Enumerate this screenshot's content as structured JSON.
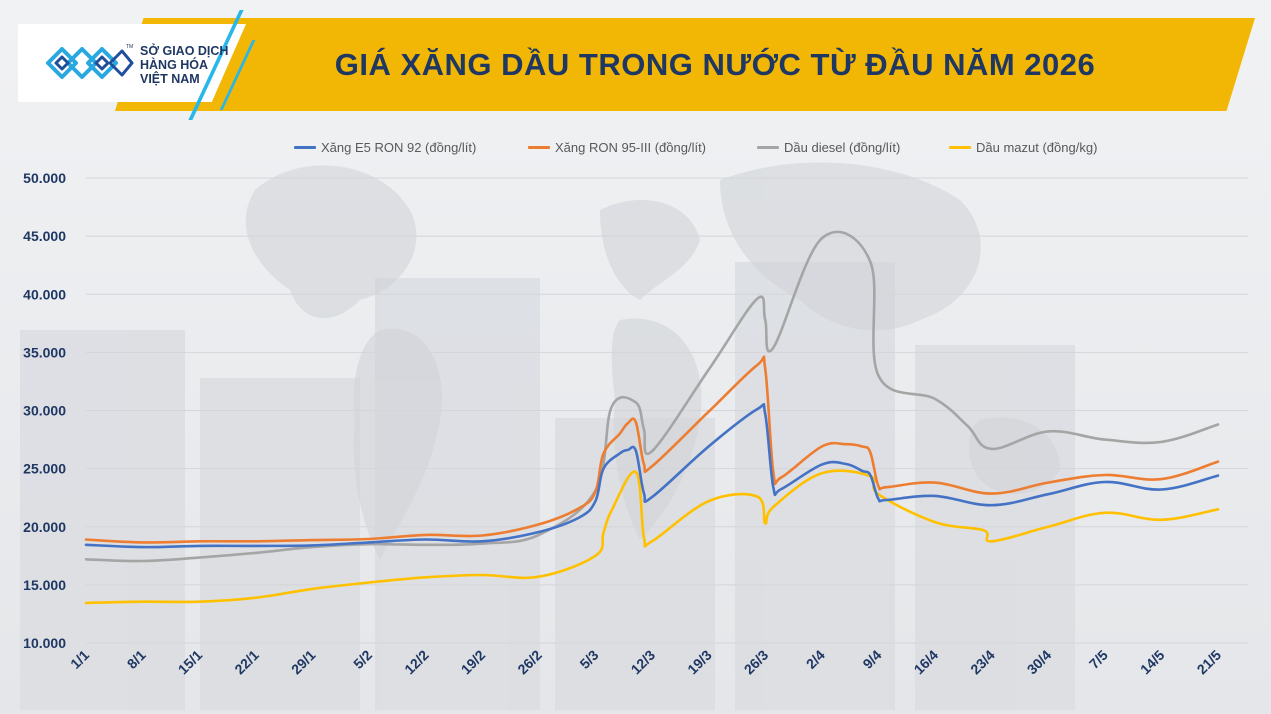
{
  "header": {
    "title": "GIÁ XĂNG DẦU TRONG NƯỚC TỪ ĐẦU NĂM 2026",
    "logo_line1": "SỞ GIAO DỊCH",
    "logo_line2": "HÀNG HÓA",
    "logo_line3": "VIỆT NAM",
    "logo_tm": "TM",
    "banner_color": "#F2B705",
    "title_color": "#1F3763"
  },
  "chart_data": {
    "type": "line",
    "title": "GIÁ XĂNG DẦU TRONG NƯỚC TỪ ĐẦU NĂM 2026",
    "xlabel": "",
    "ylabel": "",
    "ylim": [
      10000,
      50000
    ],
    "yticks": [
      10000,
      15000,
      20000,
      25000,
      30000,
      35000,
      40000,
      45000,
      50000
    ],
    "ytick_labels": [
      "10.000",
      "15.000",
      "20.000",
      "25.000",
      "30.000",
      "35.000",
      "40.000",
      "45.000",
      "50.000"
    ],
    "xrange_day": [
      1,
      141
    ],
    "xticks": [
      {
        "label": "1/1",
        "day": 1
      },
      {
        "label": "8/1",
        "day": 8
      },
      {
        "label": "15/1",
        "day": 15
      },
      {
        "label": "22/1",
        "day": 22
      },
      {
        "label": "29/1",
        "day": 29
      },
      {
        "label": "5/2",
        "day": 36
      },
      {
        "label": "12/2",
        "day": 43
      },
      {
        "label": "19/2",
        "day": 50
      },
      {
        "label": "26/2",
        "day": 57
      },
      {
        "label": "5/3",
        "day": 64
      },
      {
        "label": "12/3",
        "day": 71
      },
      {
        "label": "19/3",
        "day": 78
      },
      {
        "label": "26/3",
        "day": 85
      },
      {
        "label": "2/4",
        "day": 92
      },
      {
        "label": "9/4",
        "day": 99
      },
      {
        "label": "16/4",
        "day": 106
      },
      {
        "label": "23/4",
        "day": 113
      },
      {
        "label": "30/4",
        "day": 120
      },
      {
        "label": "7/5",
        "day": 127
      },
      {
        "label": "14/5",
        "day": 134
      },
      {
        "label": "21/5",
        "day": 141
      }
    ],
    "grid": true,
    "legend_position": "top",
    "series": [
      {
        "name": "Xăng E5 RON 92 (đồng/lít)",
        "color": "#4472C4",
        "points": [
          [
            1,
            18450
          ],
          [
            8,
            18250
          ],
          [
            15,
            18350
          ],
          [
            22,
            18350
          ],
          [
            29,
            18400
          ],
          [
            36,
            18650
          ],
          [
            43,
            18900
          ],
          [
            50,
            18750
          ],
          [
            57,
            19550
          ],
          [
            62,
            20800
          ],
          [
            64,
            22200
          ],
          [
            65,
            25000
          ],
          [
            67,
            26300
          ],
          [
            68,
            26600
          ],
          [
            69,
            26550
          ],
          [
            70,
            22900
          ],
          [
            71,
            22550
          ],
          [
            78,
            26900
          ],
          [
            84,
            30100
          ],
          [
            85,
            29700
          ],
          [
            86,
            23400
          ],
          [
            87,
            23250
          ],
          [
            92,
            25350
          ],
          [
            95,
            25400
          ],
          [
            97,
            24800
          ],
          [
            98,
            24450
          ],
          [
            99,
            22400
          ],
          [
            100,
            22300
          ],
          [
            106,
            22650
          ],
          [
            113,
            21850
          ],
          [
            120,
            22800
          ],
          [
            127,
            23850
          ],
          [
            134,
            23200
          ],
          [
            141,
            24400
          ]
        ]
      },
      {
        "name": "Xăng RON 95-III (đồng/lít)",
        "color": "#ED7D31",
        "points": [
          [
            1,
            18900
          ],
          [
            8,
            18650
          ],
          [
            15,
            18750
          ],
          [
            22,
            18750
          ],
          [
            29,
            18850
          ],
          [
            36,
            18950
          ],
          [
            43,
            19300
          ],
          [
            50,
            19250
          ],
          [
            57,
            20200
          ],
          [
            62,
            21600
          ],
          [
            64,
            23000
          ],
          [
            65,
            26300
          ],
          [
            67,
            28000
          ],
          [
            68,
            28900
          ],
          [
            69,
            29000
          ],
          [
            70,
            25400
          ],
          [
            71,
            25200
          ],
          [
            78,
            29900
          ],
          [
            84,
            33900
          ],
          [
            85,
            33600
          ],
          [
            86,
            24700
          ],
          [
            87,
            24250
          ],
          [
            92,
            26900
          ],
          [
            95,
            27100
          ],
          [
            97,
            26900
          ],
          [
            98,
            26400
          ],
          [
            99,
            23500
          ],
          [
            100,
            23400
          ],
          [
            106,
            23800
          ],
          [
            113,
            22850
          ],
          [
            120,
            23800
          ],
          [
            127,
            24450
          ],
          [
            134,
            24100
          ],
          [
            141,
            25600
          ]
        ]
      },
      {
        "name": "Dầu diesel (đồng/lít)",
        "color": "#A5A5A5",
        "points": [
          [
            1,
            17200
          ],
          [
            8,
            17050
          ],
          [
            15,
            17350
          ],
          [
            22,
            17750
          ],
          [
            29,
            18250
          ],
          [
            36,
            18500
          ],
          [
            43,
            18450
          ],
          [
            50,
            18550
          ],
          [
            57,
            19300
          ],
          [
            64,
            23100
          ],
          [
            66,
            30300
          ],
          [
            69,
            30700
          ],
          [
            70,
            28400
          ],
          [
            71,
            26500
          ],
          [
            78,
            33500
          ],
          [
            84,
            39600
          ],
          [
            85,
            37800
          ],
          [
            86,
            35400
          ],
          [
            92,
            44800
          ],
          [
            98,
            42800
          ],
          [
            99,
            33000
          ],
          [
            106,
            31000
          ],
          [
            110,
            28700
          ],
          [
            113,
            26700
          ],
          [
            120,
            28200
          ],
          [
            127,
            27500
          ],
          [
            134,
            27300
          ],
          [
            141,
            28800
          ]
        ]
      },
      {
        "name": "Dầu mazut (đồng/kg)",
        "color": "#FFC000",
        "points": [
          [
            1,
            13450
          ],
          [
            8,
            13550
          ],
          [
            15,
            13550
          ],
          [
            22,
            13900
          ],
          [
            29,
            14650
          ],
          [
            36,
            15200
          ],
          [
            43,
            15650
          ],
          [
            50,
            15850
          ],
          [
            57,
            15700
          ],
          [
            64,
            17500
          ],
          [
            65,
            19500
          ],
          [
            66,
            21400
          ],
          [
            69,
            24700
          ],
          [
            70,
            19100
          ],
          [
            71,
            18750
          ],
          [
            78,
            22200
          ],
          [
            84,
            22600
          ],
          [
            85,
            20300
          ],
          [
            86,
            21700
          ],
          [
            92,
            24600
          ],
          [
            98,
            24350
          ],
          [
            99,
            22800
          ],
          [
            106,
            20400
          ],
          [
            112,
            19700
          ],
          [
            113,
            18750
          ],
          [
            120,
            20000
          ],
          [
            127,
            21200
          ],
          [
            134,
            20600
          ],
          [
            141,
            21500
          ]
        ]
      }
    ]
  }
}
